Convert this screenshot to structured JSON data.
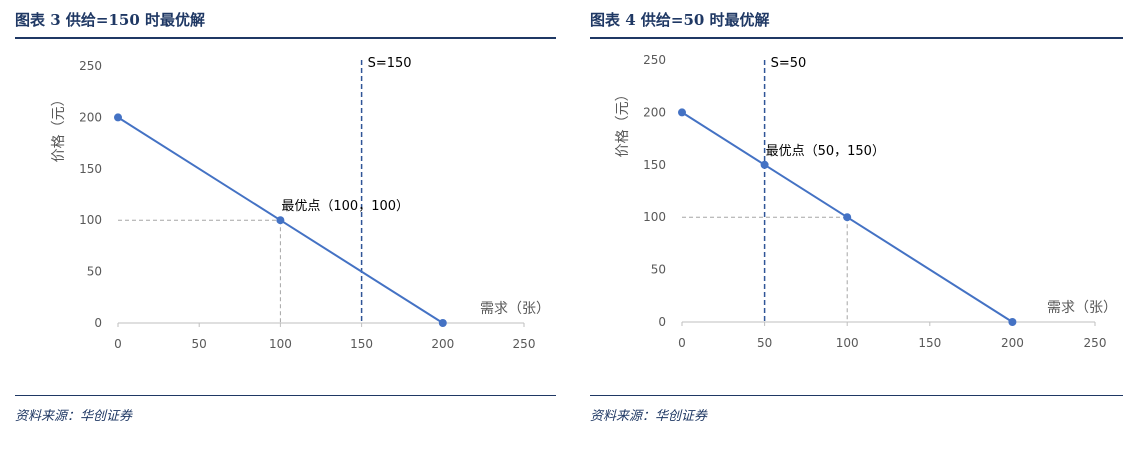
{
  "figures": [
    {
      "title": "图表 3   供给=150 时最优解",
      "source": "资料来源：华创证券",
      "chart_data": {
        "type": "line",
        "xlabel": "需求（张）",
        "ylabel": "价格（元）",
        "xlim": [
          0,
          250
        ],
        "ylim": [
          0,
          250
        ],
        "x_ticks": [
          0,
          50,
          100,
          150,
          200,
          250
        ],
        "y_ticks": [
          0,
          50,
          100,
          150,
          200,
          250
        ],
        "grid": false,
        "series": [
          {
            "points": [
              [
                0,
                200
              ],
              [
                100,
                100
              ],
              [
                200,
                0
              ]
            ],
            "color": "#4472c4"
          }
        ],
        "supply": {
          "value": 150,
          "label": "S=150",
          "color": "#2f5597"
        },
        "optimum": {
          "x": 100,
          "y": 100,
          "label": "最优点（100，100）"
        },
        "reference_color": "#a6a6a6"
      }
    },
    {
      "title": "图表 4   供给=50 时最优解",
      "source": "资料来源：华创证券",
      "chart_data": {
        "type": "line",
        "xlabel": "需求（张）",
        "ylabel": "价格（元）",
        "xlim": [
          0,
          250
        ],
        "ylim": [
          0,
          250
        ],
        "x_ticks": [
          0,
          50,
          100,
          150,
          200,
          250
        ],
        "y_ticks": [
          0,
          50,
          100,
          150,
          200,
          250
        ],
        "grid": false,
        "series": [
          {
            "points": [
              [
                0,
                200
              ],
              [
                50,
                150
              ],
              [
                100,
                100
              ],
              [
                200,
                0
              ]
            ],
            "color": "#4472c4"
          }
        ],
        "supply": {
          "value": 50,
          "label": "S=50",
          "color": "#2f5597"
        },
        "optimum": {
          "x": 50,
          "y": 150,
          "label": "最优点（50，150）"
        },
        "reference_point": {
          "x": 100,
          "y": 100
        },
        "reference_color": "#a6a6a6"
      }
    }
  ]
}
